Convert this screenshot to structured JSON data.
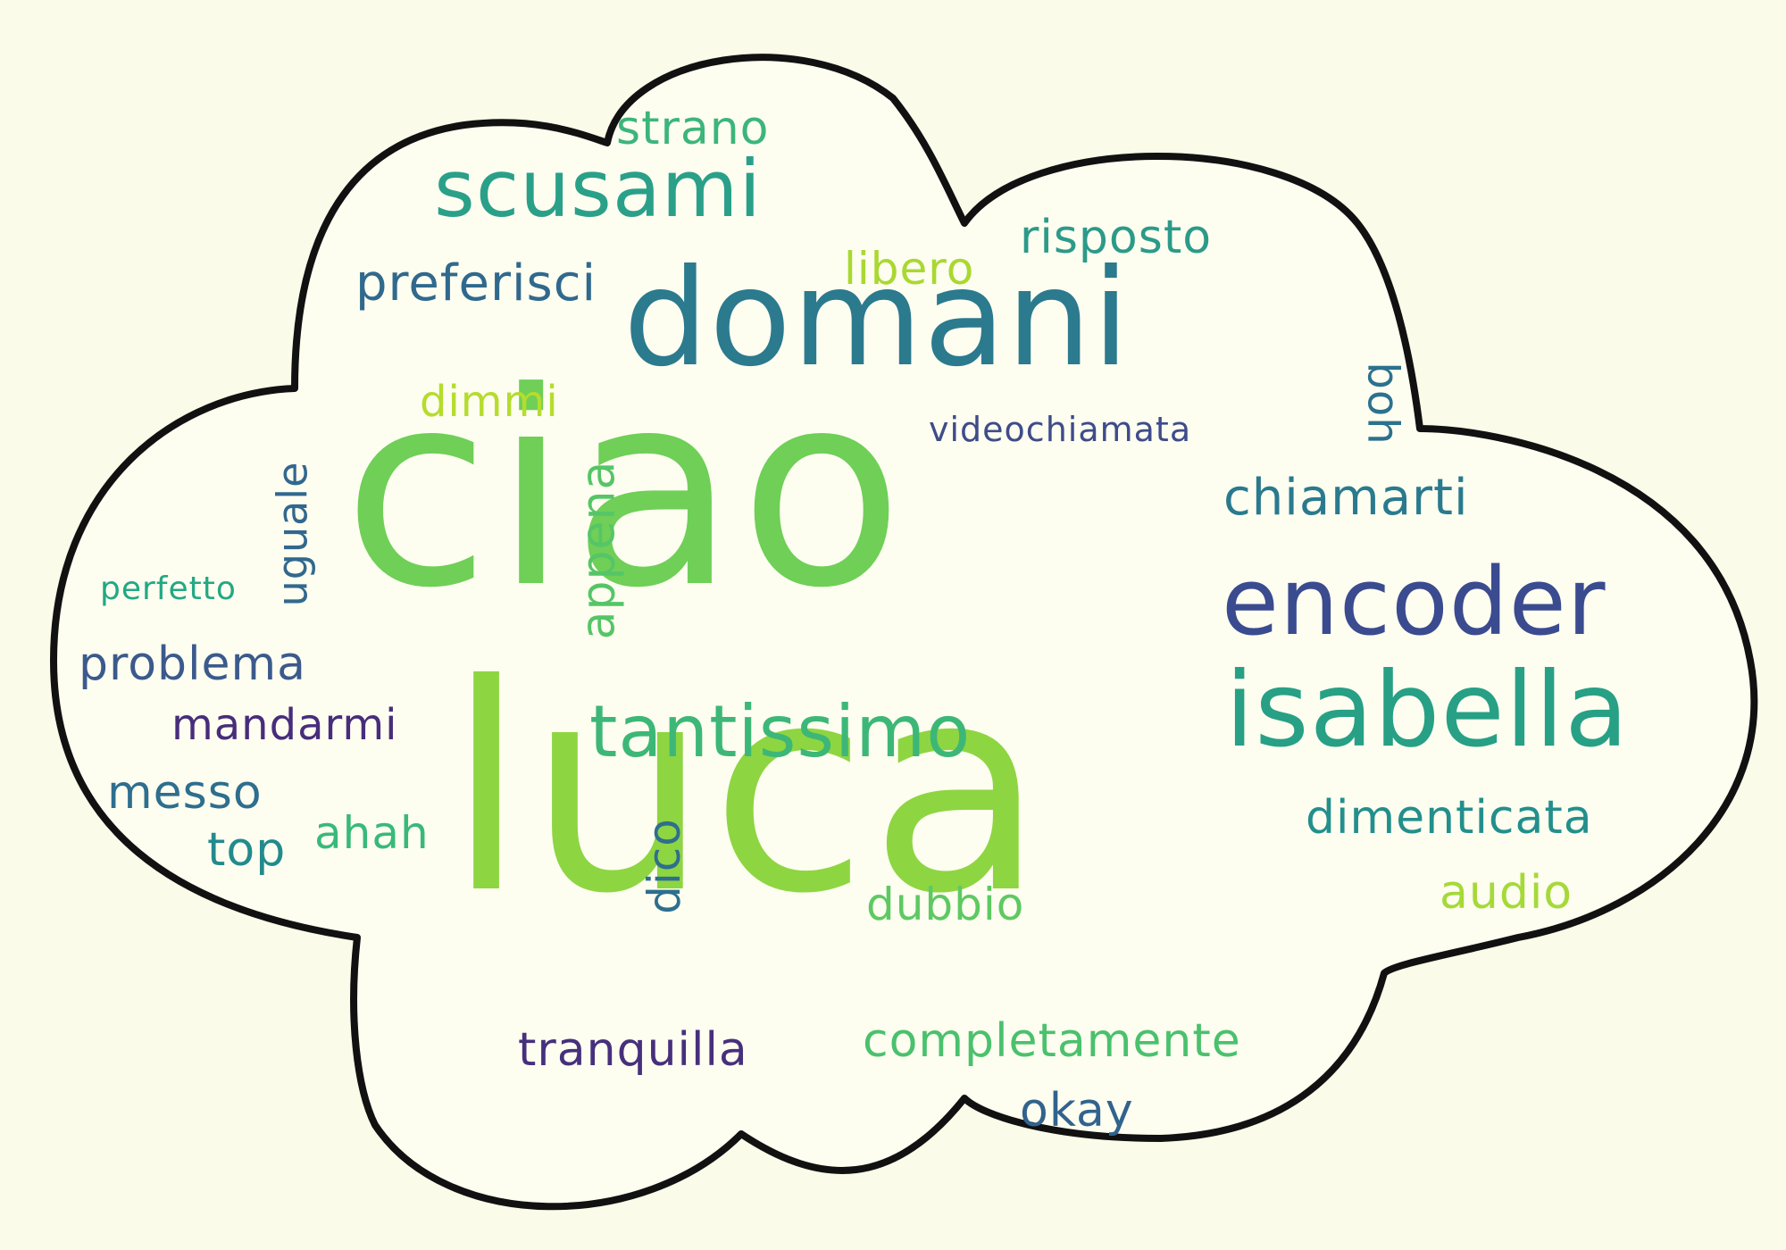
{
  "words": {
    "ciao": "ciao",
    "luca": "luca",
    "domani": "domani",
    "isabella": "isabella",
    "encoder": "encoder",
    "scusami": "scusami",
    "tantissimo": "tantissimo",
    "strano": "strano",
    "risposto": "risposto",
    "libero": "libero",
    "preferisci": "preferisci",
    "dimmi": "dimmi",
    "videochiamata": "videochiamata",
    "boh": "boh",
    "chiamarti": "chiamarti",
    "appena": "appena",
    "uguale": "uguale",
    "perfetto": "perfetto",
    "problema": "problema",
    "mandarmi": "mandarmi",
    "messo": "messo",
    "top": "top",
    "ahah": "ahah",
    "dico": "dico",
    "dubbio": "dubbio",
    "dimenticata": "dimenticata",
    "audio": "audio",
    "tranquilla": "tranquilla",
    "completamente": "completamente",
    "okay": "okay"
  },
  "colors": {
    "background": "#fbfbe9",
    "cloud_fill": "#fdfdf0",
    "cloud_outline": "#111111",
    "ciao": "#6fcf57",
    "luca": "#8ed542",
    "domani": "#2b7a8e",
    "isabella": "#27a085",
    "encoder": "#3b4b8f",
    "scusami": "#2aa089",
    "tantissimo": "#3db777",
    "strano": "#3cb57a",
    "risposto": "#2c9a89",
    "libero": "#a9d832",
    "preferisci": "#30698d",
    "dimmi": "#b5dc2e",
    "videochiamata": "#3e4c8a",
    "boh": "#2c718e",
    "chiamarti": "#2a7a8e",
    "appena": "#55c567",
    "uguale": "#31688e",
    "perfetto": "#23a884",
    "problema": "#3b5a8c",
    "mandarmi": "#472d7b",
    "messo": "#2e6e8e",
    "top": "#238a8d",
    "ahah": "#38b97a",
    "dico": "#2e6e8e",
    "dubbio": "#5ec962",
    "dimenticata": "#238f8c",
    "audio": "#a5d939",
    "tranquilla": "#46307c",
    "completamente": "#4ac16d",
    "okay": "#31638d"
  }
}
